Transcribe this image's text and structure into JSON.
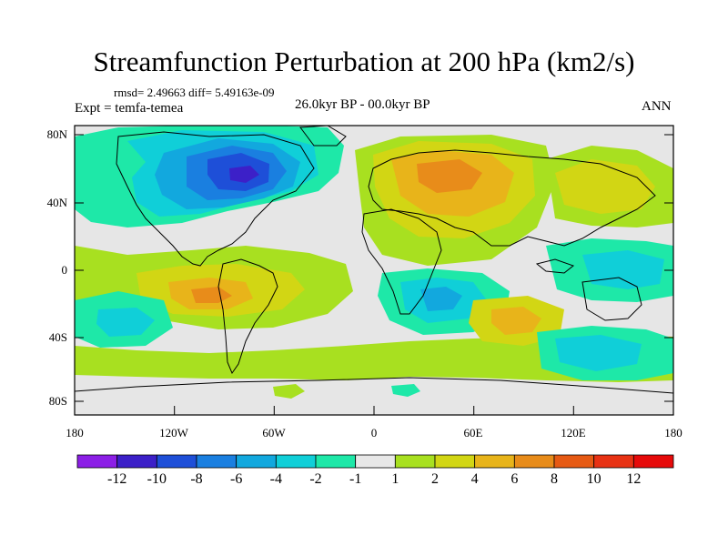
{
  "title": "Streamfunction Perturbation at 200 hPa (km2/s)",
  "stats": "rmsd= 2.49663 diff= 5.49163e-09",
  "left_label": "Expt = temfa-temea",
  "center_label": "26.0kyr BP - 00.0kyr BP",
  "right_label": "ANN",
  "y_ticks": [
    "80N",
    "40N",
    "0",
    "40S",
    "80S"
  ],
  "x_ticks": [
    "180",
    "120W",
    "60W",
    "0",
    "60E",
    "120E",
    "180"
  ],
  "colorbar": {
    "labels": [
      "-12",
      "-10",
      "-8",
      "-6",
      "-4",
      "-2",
      "-1",
      "1",
      "2",
      "4",
      "6",
      "8",
      "10",
      "12"
    ],
    "colors": [
      "#8c1fe6",
      "#3c20c8",
      "#1e4fd8",
      "#1a7fe0",
      "#12a8de",
      "#10cfd8",
      "#1ee8a8",
      "#e8e8e8",
      "#a8e020",
      "#d2d614",
      "#e8b41a",
      "#e88c1a",
      "#e65a14",
      "#e83214",
      "#e60a0a"
    ]
  },
  "map_colors": {
    "background": "#e6e6e6",
    "neg1": "#1ee8a8",
    "neg2": "#10cfd8",
    "neg4": "#12a8de",
    "neg6": "#1a7fe0",
    "neg8": "#1e4fd8",
    "neg10": "#3c20c8",
    "pos1": "#a8e020",
    "pos2": "#d2d614",
    "pos4": "#e8b41a",
    "pos6": "#e88c1a"
  }
}
